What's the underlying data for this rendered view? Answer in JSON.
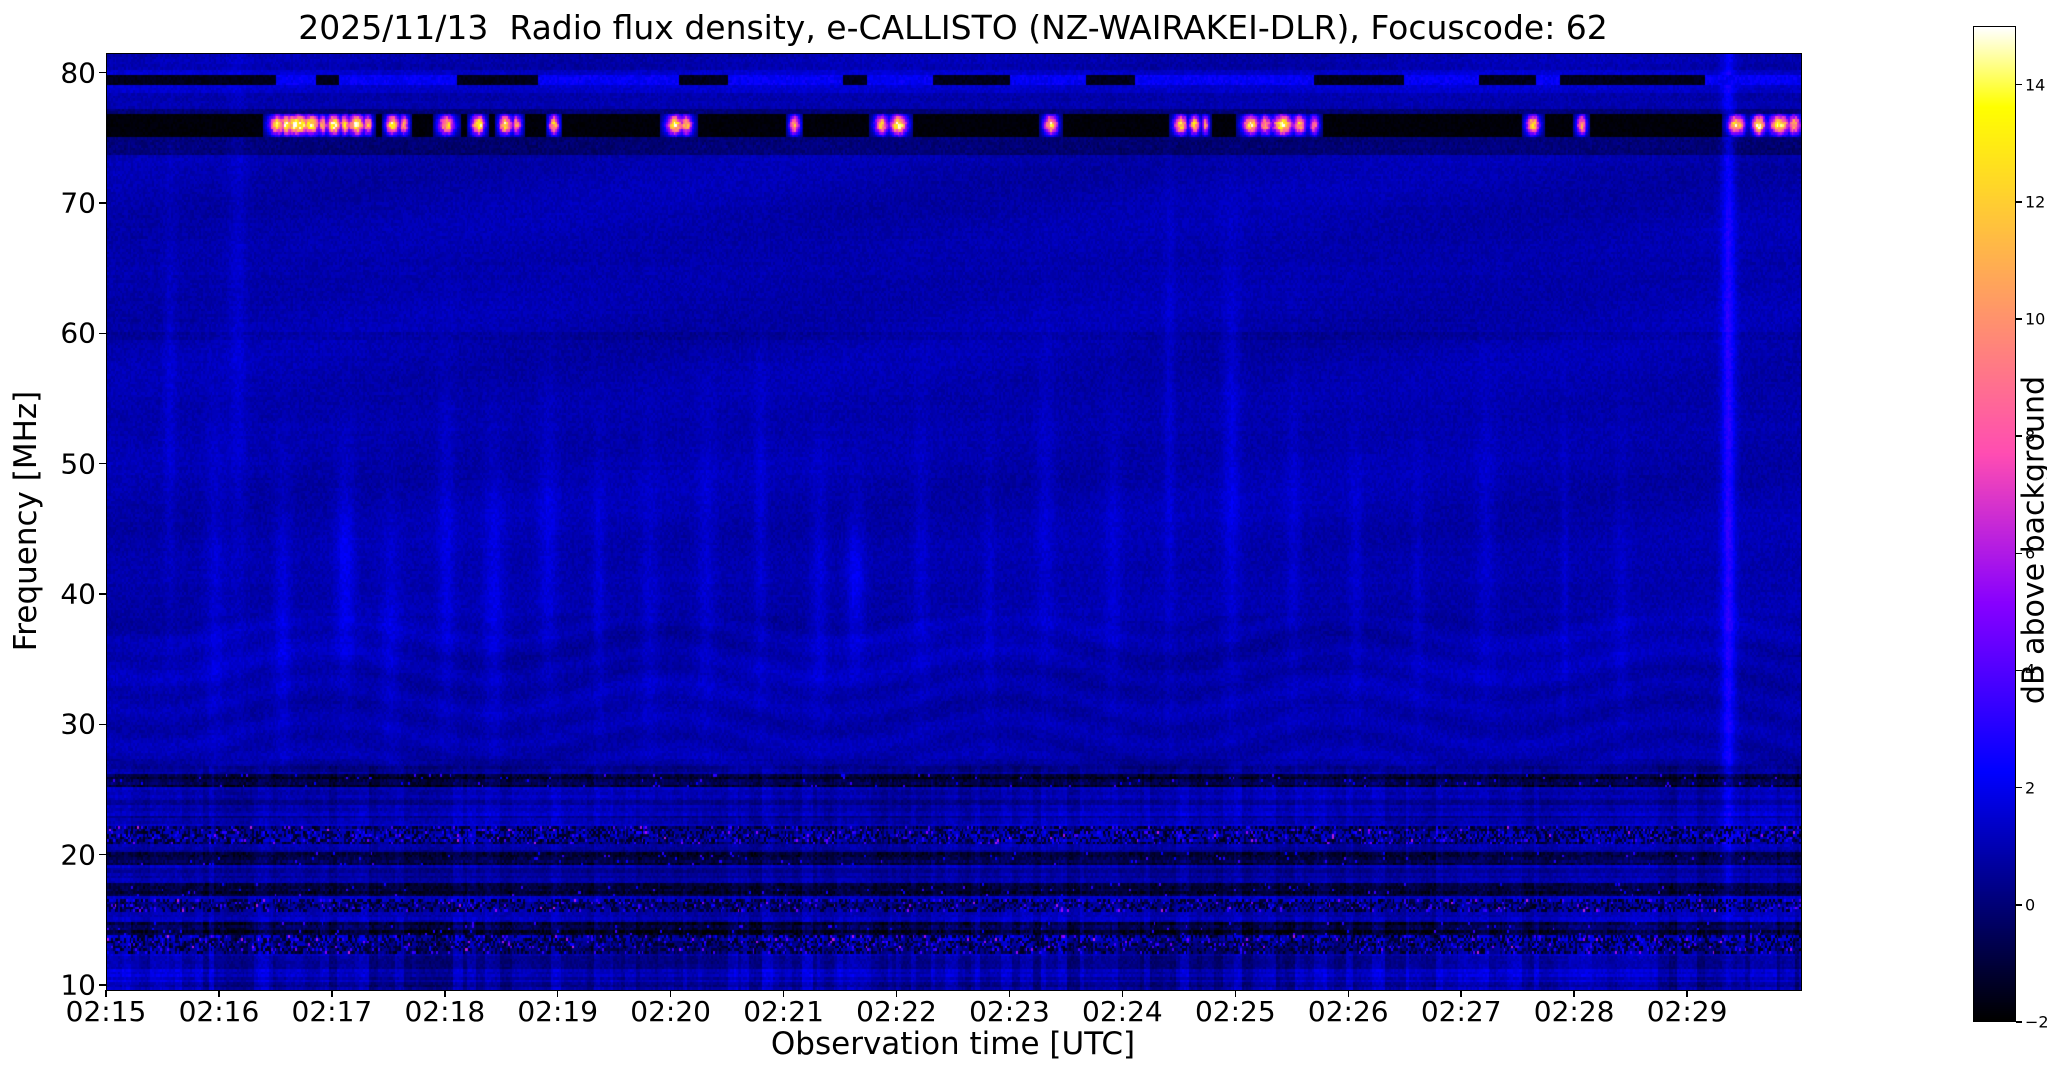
{
  "chart_data": {
    "type": "heatmap",
    "subtype": "radio-spectrogram",
    "title": "2025/11/13  Radio flux density, e-CALLISTO (NZ-WAIRAKEI-DLR), Focuscode: 62",
    "date": "2025/11/13",
    "instrument": "e-CALLISTO",
    "station": "NZ-WAIRAKEI-DLR",
    "focuscode": 62,
    "xlabel": "Observation time [UTC]",
    "ylabel": "Frequency [MHz]",
    "x_ticks": [
      "02:15",
      "02:16",
      "02:17",
      "02:18",
      "02:19",
      "02:20",
      "02:21",
      "02:22",
      "02:23",
      "02:24",
      "02:25",
      "02:26",
      "02:27",
      "02:28",
      "02:29"
    ],
    "x_tick_minutes": [
      0,
      1,
      2,
      3,
      4,
      5,
      6,
      7,
      8,
      9,
      10,
      11,
      12,
      13,
      14
    ],
    "x_range_minutes": [
      0,
      15
    ],
    "y_ticks": [
      10,
      20,
      30,
      40,
      50,
      60,
      70,
      80
    ],
    "ylim": [
      9.7,
      81.5
    ],
    "colorbar": {
      "label": "dB above background",
      "ticks": [
        -2,
        0,
        2,
        4,
        6,
        8,
        10,
        12,
        14
      ],
      "vmin": -2,
      "vmax": 15,
      "colormap": "gnuplot2"
    },
    "features": {
      "background_level_db": [
        0,
        2
      ],
      "rfi_band_76mhz": {
        "freq_range_mhz": [
          75.2,
          76.95
        ],
        "baseline_db": -2,
        "burst_profile_sigma_mhz": 0.5,
        "bursts": [
          [
            1.5,
            0.05,
            13
          ],
          [
            1.58,
            0.03,
            15
          ],
          [
            1.68,
            0.08,
            15
          ],
          [
            1.8,
            0.05,
            14
          ],
          [
            1.9,
            0.03,
            11
          ],
          [
            2.0,
            0.04,
            15
          ],
          [
            2.1,
            0.03,
            12
          ],
          [
            2.2,
            0.05,
            15
          ],
          [
            2.3,
            0.03,
            11
          ],
          [
            2.52,
            0.04,
            13
          ],
          [
            2.62,
            0.03,
            11
          ],
          [
            3.0,
            0.05,
            12
          ],
          [
            3.28,
            0.04,
            14
          ],
          [
            3.52,
            0.04,
            13
          ],
          [
            3.62,
            0.03,
            10
          ],
          [
            3.95,
            0.03,
            12
          ],
          [
            5.02,
            0.05,
            14
          ],
          [
            5.12,
            0.04,
            12
          ],
          [
            6.08,
            0.03,
            11
          ],
          [
            6.85,
            0.04,
            12
          ],
          [
            7.0,
            0.05,
            15
          ],
          [
            8.35,
            0.04,
            13
          ],
          [
            9.5,
            0.04,
            13
          ],
          [
            9.62,
            0.03,
            12
          ],
          [
            9.72,
            0.02,
            10
          ],
          [
            10.12,
            0.05,
            13
          ],
          [
            10.25,
            0.04,
            11
          ],
          [
            10.4,
            0.06,
            15
          ],
          [
            10.55,
            0.04,
            12
          ],
          [
            10.68,
            0.03,
            10
          ],
          [
            12.62,
            0.04,
            13
          ],
          [
            13.05,
            0.03,
            11
          ],
          [
            14.42,
            0.05,
            13
          ],
          [
            14.62,
            0.04,
            15
          ],
          [
            14.8,
            0.06,
            14
          ],
          [
            14.93,
            0.04,
            12
          ]
        ]
      },
      "band_79_5mhz": {
        "freq_range_mhz": [
          79.15,
          79.9
        ],
        "pattern": "alternating dark and blue segments"
      },
      "dark_band_mhz": [
        73.7,
        74.9
      ],
      "low_freq_noise_bands": [
        {
          "freq_range_mhz": [
            12.5,
            13.8
          ],
          "style": "speckle"
        },
        {
          "freq_range_mhz": [
            13.9,
            14.8
          ],
          "style": "dark"
        },
        {
          "freq_range_mhz": [
            15.7,
            16.7
          ],
          "style": "speckle"
        },
        {
          "freq_range_mhz": [
            16.9,
            17.8
          ],
          "style": "dark"
        },
        {
          "freq_range_mhz": [
            19.3,
            20.3
          ],
          "style": "dark"
        },
        {
          "freq_range_mhz": [
            20.8,
            22.3
          ],
          "style": "speckle"
        },
        {
          "freq_range_mhz": [
            25.2,
            26.3
          ],
          "style": "dark"
        }
      ],
      "dark_lines_mhz": [
        {
          "f": 26.8,
          "hw": 0.25,
          "s": 0.5
        },
        {
          "f": 59.8,
          "hw": 0.3,
          "s": 0.25
        }
      ],
      "vertical_streaks": [
        [
          0.55,
          55,
          12,
          0.6
        ],
        [
          0.95,
          40,
          10,
          0.7
        ],
        [
          1.15,
          60,
          18,
          0.6
        ],
        [
          1.55,
          38,
          8,
          0.8
        ],
        [
          2.1,
          42,
          6,
          1.1
        ],
        [
          2.5,
          37,
          7,
          0.7
        ],
        [
          3.0,
          43,
          9,
          0.8
        ],
        [
          3.42,
          40,
          8,
          0.9
        ],
        [
          3.9,
          44,
          8,
          0.8
        ],
        [
          4.35,
          41,
          7,
          0.7
        ],
        [
          4.8,
          39,
          8,
          0.6
        ],
        [
          5.3,
          42,
          8,
          0.7
        ],
        [
          5.78,
          45,
          9,
          0.7
        ],
        [
          6.3,
          41,
          7,
          0.8
        ],
        [
          6.62,
          41,
          4,
          1.2
        ],
        [
          7.2,
          43,
          8,
          0.6
        ],
        [
          7.8,
          40,
          8,
          0.5
        ],
        [
          8.3,
          46,
          9,
          0.6
        ],
        [
          8.9,
          42,
          8,
          0.6
        ],
        [
          9.4,
          52,
          14,
          0.7
        ],
        [
          9.95,
          50,
          12,
          0.9
        ],
        [
          10.5,
          44,
          9,
          0.6
        ],
        [
          11.05,
          42,
          8,
          0.6
        ],
        [
          11.6,
          40,
          8,
          0.5
        ],
        [
          12.2,
          44,
          8,
          0.6
        ],
        [
          12.9,
          42,
          8,
          0.6
        ],
        [
          13.4,
          40,
          8,
          0.5
        ],
        [
          14.35,
          50,
          30,
          2.3
        ]
      ]
    }
  }
}
